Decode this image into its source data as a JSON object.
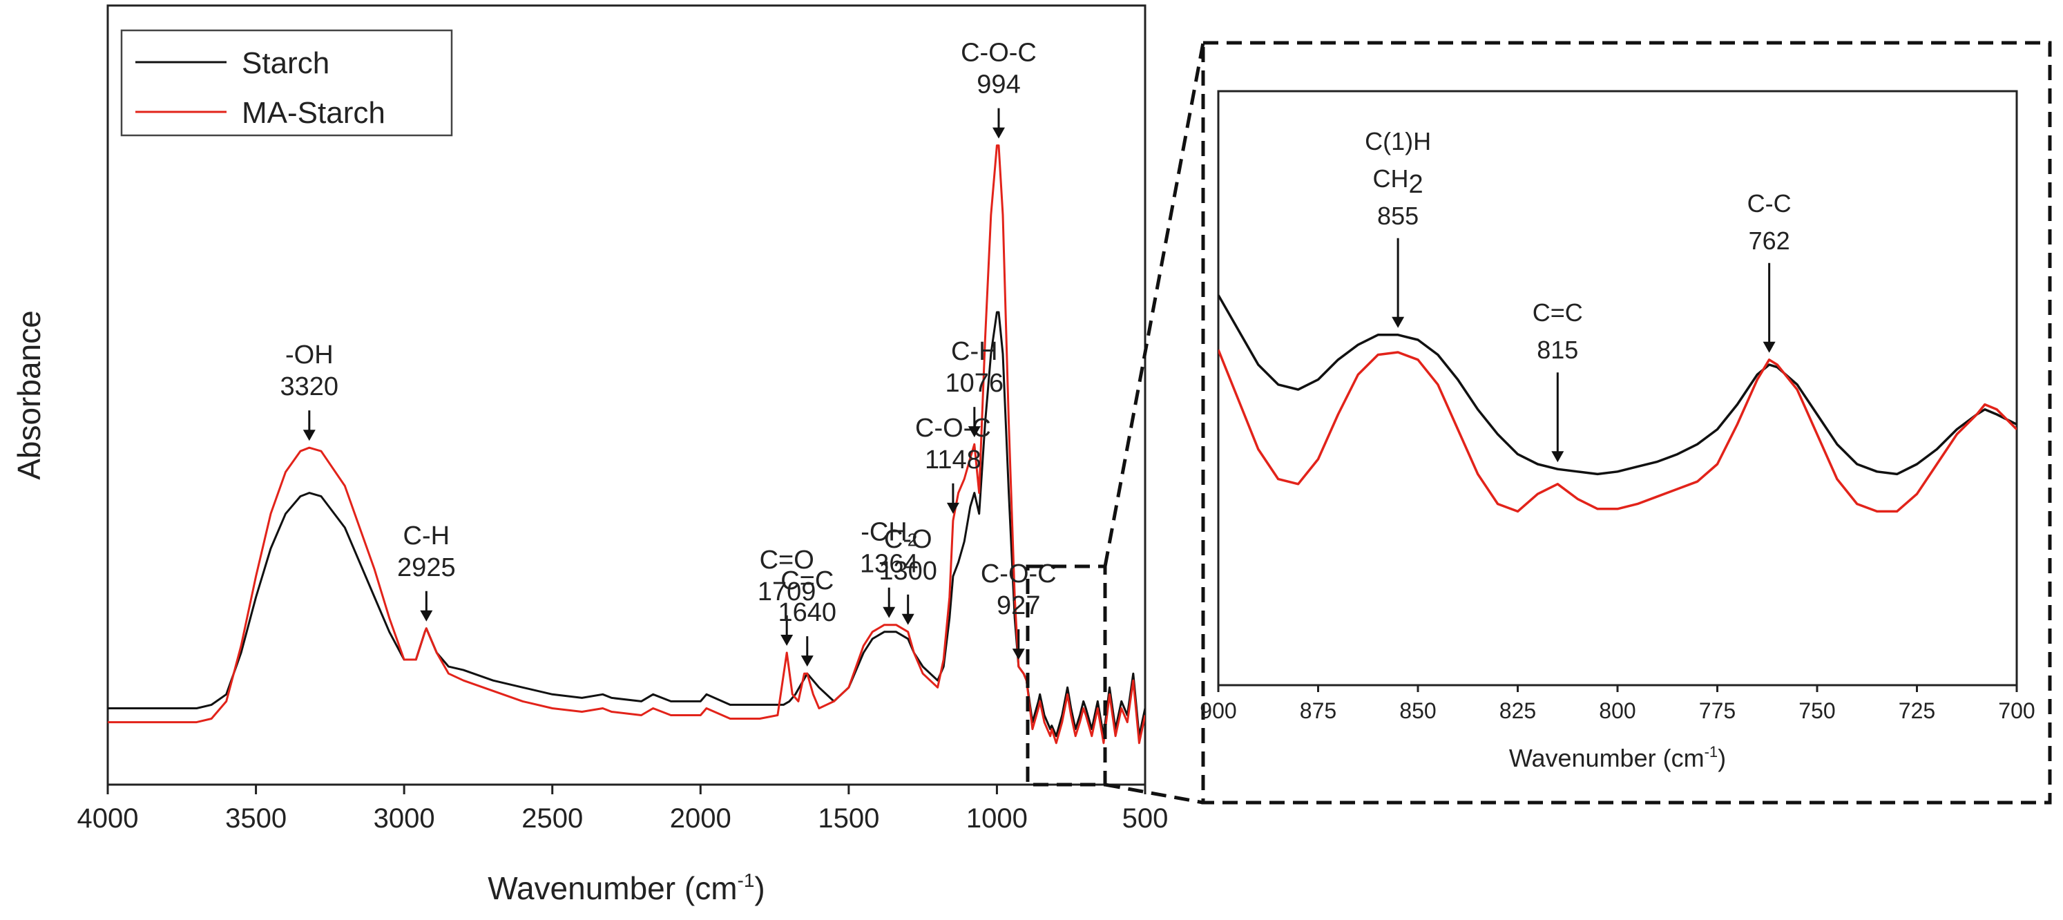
{
  "chart_data": [
    {
      "type": "line",
      "title": "",
      "xlabel": "Wavenumber",
      "xlabel_unit": "(cm",
      "xlabel_sup": "-1",
      "xlabel_close": ")",
      "ylabel": "Absorbance",
      "xlim": [
        4000,
        500
      ],
      "ylim": [
        0,
        1
      ],
      "xticks": [
        4000,
        3500,
        3000,
        2500,
        2000,
        1500,
        1000,
        500
      ],
      "grid": false,
      "legend": {
        "position": "top-left",
        "entries": [
          "Starch",
          "MA-Starch"
        ]
      },
      "series": [
        {
          "name": "Starch",
          "color": "#111111",
          "x": [
            4000,
            3800,
            3700,
            3650,
            3600,
            3550,
            3500,
            3450,
            3400,
            3350,
            3320,
            3280,
            3200,
            3100,
            3050,
            3000,
            2960,
            2930,
            2925,
            2890,
            2850,
            2800,
            2700,
            2600,
            2500,
            2400,
            2330,
            2300,
            2200,
            2160,
            2100,
            2000,
            1980,
            1900,
            1800,
            1720,
            1700,
            1680,
            1640,
            1600,
            1550,
            1500,
            1450,
            1420,
            1380,
            1364,
            1340,
            1300,
            1280,
            1250,
            1200,
            1180,
            1160,
            1148,
            1130,
            1110,
            1090,
            1076,
            1060,
            1040,
            1020,
            1000,
            994,
            980,
            960,
            940,
            927,
            910,
            900,
            880,
            860,
            855,
            840,
            820,
            815,
            800,
            780,
            762,
            750,
            735,
            720,
            708,
            700,
            680,
            660,
            640,
            620,
            600,
            580,
            560,
            540,
            520,
            500
          ],
          "y": [
            0.09,
            0.09,
            0.09,
            0.095,
            0.11,
            0.17,
            0.25,
            0.32,
            0.37,
            0.395,
            0.4,
            0.395,
            0.35,
            0.25,
            0.2,
            0.16,
            0.16,
            0.2,
            0.205,
            0.17,
            0.15,
            0.145,
            0.13,
            0.12,
            0.11,
            0.105,
            0.11,
            0.105,
            0.1,
            0.11,
            0.1,
            0.1,
            0.11,
            0.095,
            0.095,
            0.095,
            0.1,
            0.11,
            0.14,
            0.12,
            0.1,
            0.12,
            0.17,
            0.19,
            0.2,
            0.2,
            0.2,
            0.19,
            0.17,
            0.15,
            0.13,
            0.15,
            0.22,
            0.28,
            0.3,
            0.33,
            0.38,
            0.4,
            0.37,
            0.5,
            0.6,
            0.66,
            0.66,
            0.6,
            0.4,
            0.22,
            0.15,
            0.14,
            0.13,
            0.07,
            0.1,
            0.11,
            0.08,
            0.06,
            0.065,
            0.05,
            0.08,
            0.12,
            0.09,
            0.06,
            0.08,
            0.1,
            0.09,
            0.06,
            0.1,
            0.05,
            0.12,
            0.06,
            0.1,
            0.08,
            0.14,
            0.05,
            0.09
          ]
        },
        {
          "name": "MA-Starch",
          "color": "#e2231a",
          "x": [
            4000,
            3800,
            3700,
            3650,
            3600,
            3550,
            3500,
            3450,
            3400,
            3350,
            3320,
            3280,
            3200,
            3100,
            3050,
            3000,
            2960,
            2930,
            2925,
            2890,
            2850,
            2800,
            2700,
            2600,
            2500,
            2400,
            2330,
            2300,
            2200,
            2160,
            2100,
            2000,
            1980,
            1900,
            1800,
            1740,
            1709,
            1690,
            1670,
            1650,
            1640,
            1620,
            1600,
            1550,
            1500,
            1450,
            1420,
            1380,
            1364,
            1340,
            1300,
            1280,
            1250,
            1200,
            1180,
            1160,
            1148,
            1130,
            1110,
            1090,
            1076,
            1060,
            1040,
            1020,
            1000,
            994,
            980,
            960,
            940,
            927,
            910,
            900,
            880,
            860,
            855,
            840,
            820,
            815,
            800,
            780,
            762,
            750,
            735,
            720,
            708,
            700,
            680,
            660,
            640,
            620,
            600,
            580,
            560,
            540,
            520,
            500
          ],
          "y": [
            0.07,
            0.07,
            0.07,
            0.075,
            0.1,
            0.18,
            0.28,
            0.37,
            0.43,
            0.46,
            0.465,
            0.46,
            0.41,
            0.29,
            0.22,
            0.16,
            0.16,
            0.2,
            0.205,
            0.17,
            0.14,
            0.13,
            0.115,
            0.1,
            0.09,
            0.085,
            0.09,
            0.085,
            0.08,
            0.09,
            0.08,
            0.08,
            0.09,
            0.075,
            0.075,
            0.08,
            0.17,
            0.11,
            0.1,
            0.14,
            0.14,
            0.11,
            0.09,
            0.1,
            0.12,
            0.18,
            0.2,
            0.21,
            0.21,
            0.21,
            0.2,
            0.17,
            0.14,
            0.12,
            0.16,
            0.25,
            0.36,
            0.4,
            0.42,
            0.45,
            0.47,
            0.4,
            0.62,
            0.8,
            0.9,
            0.9,
            0.8,
            0.5,
            0.25,
            0.15,
            0.14,
            0.13,
            0.06,
            0.09,
            0.1,
            0.07,
            0.05,
            0.06,
            0.04,
            0.07,
            0.11,
            0.08,
            0.05,
            0.07,
            0.09,
            0.08,
            0.05,
            0.09,
            0.04,
            0.11,
            0.05,
            0.09,
            0.07,
            0.13,
            0.04,
            0.08
          ]
        }
      ],
      "annotations": [
        {
          "label": "-OH",
          "value": "3320",
          "x": 3320
        },
        {
          "label": "C-H",
          "value": "2925",
          "x": 2925
        },
        {
          "label": "C=O",
          "value": "1709",
          "x": 1709
        },
        {
          "label": "C=C",
          "value": "1640",
          "x": 1640
        },
        {
          "label": "-CH",
          "label_sub": "2",
          "value": "1364",
          "x": 1364
        },
        {
          "label": "C-O",
          "value": "1300",
          "x": 1300
        },
        {
          "label": "C-O-C",
          "value": "1148",
          "x": 1148
        },
        {
          "label": "C-H",
          "value": "1076",
          "x": 1076
        },
        {
          "label": "C-O-C",
          "value": "994",
          "x": 994
        },
        {
          "label": "C-O-C",
          "value": "927",
          "x": 927
        }
      ]
    },
    {
      "type": "line",
      "title": "",
      "xlabel": "Wavenumber",
      "xlabel_unit": "(cm",
      "xlabel_sup": "-1",
      "xlabel_close": ")",
      "ylabel": "",
      "xlim": [
        900,
        700
      ],
      "ylim": [
        0,
        1
      ],
      "xticks": [
        900,
        875,
        850,
        825,
        800,
        775,
        750,
        725,
        700
      ],
      "grid": false,
      "series": [
        {
          "name": "Starch",
          "color": "#111111",
          "x": [
            900,
            895,
            890,
            885,
            880,
            875,
            870,
            865,
            860,
            855,
            850,
            845,
            840,
            835,
            830,
            825,
            820,
            815,
            810,
            805,
            800,
            795,
            790,
            785,
            780,
            775,
            770,
            765,
            762,
            760,
            755,
            750,
            745,
            740,
            735,
            730,
            725,
            720,
            715,
            710,
            708,
            705,
            700
          ],
          "y": [
            0.74,
            0.67,
            0.6,
            0.56,
            0.55,
            0.57,
            0.61,
            0.64,
            0.66,
            0.66,
            0.65,
            0.62,
            0.57,
            0.51,
            0.46,
            0.42,
            0.4,
            0.39,
            0.385,
            0.38,
            0.385,
            0.395,
            0.405,
            0.42,
            0.44,
            0.47,
            0.52,
            0.58,
            0.6,
            0.595,
            0.56,
            0.5,
            0.44,
            0.4,
            0.385,
            0.38,
            0.4,
            0.43,
            0.47,
            0.5,
            0.51,
            0.5,
            0.48
          ]
        },
        {
          "name": "MA-Starch",
          "color": "#e2231a",
          "x": [
            900,
            895,
            890,
            885,
            880,
            875,
            870,
            865,
            860,
            855,
            850,
            845,
            840,
            835,
            830,
            825,
            820,
            815,
            810,
            805,
            800,
            795,
            790,
            785,
            780,
            775,
            770,
            765,
            762,
            760,
            755,
            750,
            745,
            740,
            735,
            730,
            725,
            720,
            715,
            710,
            708,
            705,
            700
          ],
          "y": [
            0.63,
            0.53,
            0.43,
            0.37,
            0.36,
            0.41,
            0.5,
            0.58,
            0.62,
            0.625,
            0.61,
            0.56,
            0.47,
            0.38,
            0.32,
            0.305,
            0.34,
            0.36,
            0.33,
            0.31,
            0.31,
            0.32,
            0.335,
            0.35,
            0.365,
            0.4,
            0.48,
            0.57,
            0.61,
            0.6,
            0.55,
            0.46,
            0.37,
            0.32,
            0.305,
            0.305,
            0.34,
            0.4,
            0.46,
            0.5,
            0.52,
            0.51,
            0.47
          ]
        }
      ],
      "annotations": [
        {
          "label": "C(1)H",
          "label2": "CH",
          "label2_sub": "2",
          "value": "855",
          "x": 855
        },
        {
          "label": "C=C",
          "value": "815",
          "x": 815
        },
        {
          "label": "C-C",
          "value": "762",
          "x": 762
        }
      ]
    }
  ]
}
